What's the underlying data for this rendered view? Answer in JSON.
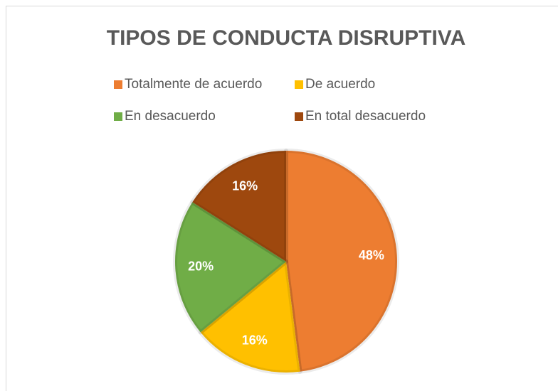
{
  "chart_data": {
    "type": "pie",
    "title": "TIPOS DE CONDUCTA DISRUPTIVA",
    "categories": [
      "Totalmente de acuerdo",
      "De acuerdo",
      "En desacuerdo",
      "En total desacuerdo"
    ],
    "values": [
      48,
      16,
      20,
      16
    ],
    "value_labels": [
      "48%",
      "16%",
      "20%",
      "16%"
    ],
    "colors": [
      "#ED7D31",
      "#FFC000",
      "#70AD47",
      "#9E480E"
    ]
  }
}
